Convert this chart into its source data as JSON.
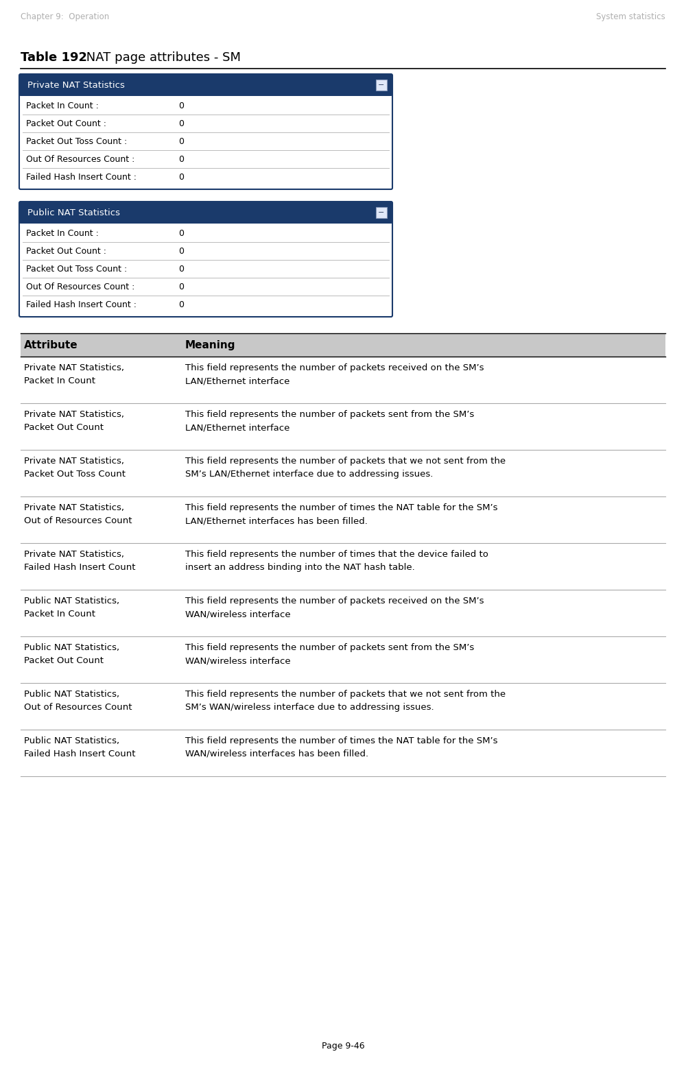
{
  "header_left": "Chapter 9:  Operation",
  "header_right": "System statistics",
  "table_title_bold": "Table 192",
  "table_title_normal": " NAT page attributes - SM",
  "private_box_title": "Private NAT Statistics",
  "public_box_title": "Public NAT Statistics",
  "box_rows": [
    "Packet In Count :",
    "Packet Out Count :",
    "Packet Out Toss Count :",
    "Out Of Resources Count :",
    "Failed Hash Insert Count :"
  ],
  "box_values": [
    "0",
    "0",
    "0",
    "0",
    "0"
  ],
  "attr_header": "Attribute",
  "meaning_header": "Meaning",
  "table_rows": [
    {
      "attr": "Private NAT Statistics,\nPacket In Count",
      "meaning": "This field represents the number of packets received on the SM’s\nLAN/Ethernet interface"
    },
    {
      "attr": "Private NAT Statistics,\nPacket Out Count",
      "meaning": "This field represents the number of packets sent from the SM’s\nLAN/Ethernet interface"
    },
    {
      "attr": "Private NAT Statistics,\nPacket Out Toss Count",
      "meaning": "This field represents the number of packets that we not sent from the\nSM’s LAN/Ethernet interface due to addressing issues."
    },
    {
      "attr": "Private NAT Statistics,\nOut of Resources Count",
      "meaning": "This field represents the number of times the NAT table for the SM’s\nLAN/Ethernet interfaces has been filled."
    },
    {
      "attr": "Private NAT Statistics,\nFailed Hash Insert Count",
      "meaning": "This field represents the number of times that the device failed to\ninsert an address binding into the NAT hash table."
    },
    {
      "attr": "Public NAT Statistics,\nPacket In Count",
      "meaning": "This field represents the number of packets received on the SM’s\nWAN/wireless interface"
    },
    {
      "attr": "Public NAT Statistics,\nPacket Out Count",
      "meaning": "This field represents the number of packets sent from the SM’s\nWAN/wireless interface"
    },
    {
      "attr": "Public NAT Statistics,\nOut of Resources Count",
      "meaning": "This field represents the number of packets that we not sent from the\nSM’s WAN/wireless interface due to addressing issues."
    },
    {
      "attr": "Public NAT Statistics,\nFailed Hash Insert Count",
      "meaning": "This field represents the number of times the NAT table for the SM’s\nWAN/wireless interfaces has been filled."
    }
  ],
  "footer": "Page 9-46",
  "header_color": "#b0b0b0",
  "box_header_bg": "#1a3a6b",
  "box_header_text": "#ffffff",
  "box_border_color": "#1a3a6b",
  "box_bg": "#ffffff",
  "table_header_bg": "#c8c8c8",
  "row_line_color": "#aaaaaa",
  "page_bg": "#ffffff"
}
